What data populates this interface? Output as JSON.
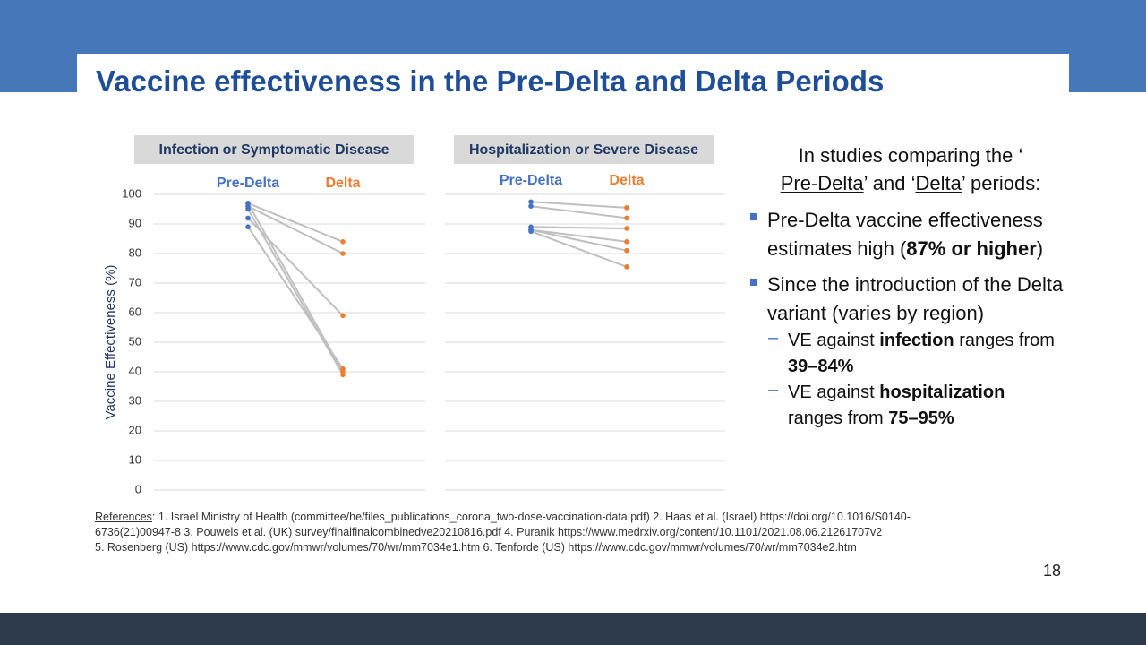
{
  "title": "Vaccine effectiveness in the Pre-Delta and Delta Periods",
  "intro": [
    "In studies comparing the ‘",
    "Pre-Delta",
    "’ and ‘",
    "Delta",
    "’ periods:"
  ],
  "bullets": [
    [
      "Pre-Delta vaccine effectiveness estimates high (",
      "87% or higher",
      ")"
    ],
    [
      "Since the introduction of the Delta variant (varies by region)"
    ]
  ],
  "sub_bullets": [
    [
      "VE against ",
      "infection",
      " ranges from ",
      "39–84%"
    ],
    [
      "VE against ",
      "hospitalization",
      " ranges from ",
      "75–95%"
    ]
  ],
  "references_label": "References",
  "references": [
    ": 1. Israel Ministry of Health (committee/he/files_publications_corona_two-dose-vaccination-data.pdf) 2. Haas et al. (Israel) https://doi.org/10.1016/S0140-",
    "6736(21)00947-8 3. Pouwels et al. (UK) survey/finalfinalcombinedve20210816.pdf  4. Puranik https://www.medrxiv.org/content/10.1101/2021.08.06.21261707v2",
    "5. Rosenberg (US)  https://www.cdc.gov/mmwr/volumes/70/wr/mm7034e1.htm  6. Tenforde (US) https://www.cdc.gov/mmwr/volumes/70/wr/mm7034e2.htm"
  ],
  "page_number": "18",
  "chart_data": [
    {
      "type": "slope",
      "title": "Infection or Symptomatic Disease",
      "ylabel": "Vaccine Effectiveness (%)",
      "categories": [
        "Pre-Delta",
        "Delta"
      ],
      "category_colors": [
        "#4472c4",
        "#ed7d31"
      ],
      "line_color": "#bfbfbf",
      "ylim": [
        0,
        100
      ],
      "yticks": [
        0,
        10,
        20,
        30,
        40,
        50,
        60,
        70,
        80,
        90,
        100
      ],
      "grid": true,
      "series": [
        {
          "values": [
            97,
            84
          ]
        },
        {
          "values": [
            96,
            80
          ]
        },
        {
          "values": [
            92,
            59
          ]
        },
        {
          "values": [
            89,
            41
          ]
        },
        {
          "values": [
            97,
            40
          ]
        },
        {
          "values": [
            95,
            39
          ]
        }
      ]
    },
    {
      "type": "slope",
      "title": "Hospitalization or Severe Disease",
      "categories": [
        "Pre-Delta",
        "Delta"
      ],
      "category_colors": [
        "#4472c4",
        "#ed7d31"
      ],
      "line_color": "#bfbfbf",
      "ylim": [
        0,
        100
      ],
      "yticks": [
        0,
        10,
        20,
        30,
        40,
        50,
        60,
        70,
        80,
        90,
        100
      ],
      "grid": true,
      "series": [
        {
          "values": [
            97.5,
            95.5
          ]
        },
        {
          "values": [
            96,
            92
          ]
        },
        {
          "values": [
            89,
            88.5
          ]
        },
        {
          "values": [
            88,
            84
          ]
        },
        {
          "values": [
            88,
            81
          ]
        },
        {
          "values": [
            87.5,
            75.5
          ]
        }
      ]
    }
  ]
}
